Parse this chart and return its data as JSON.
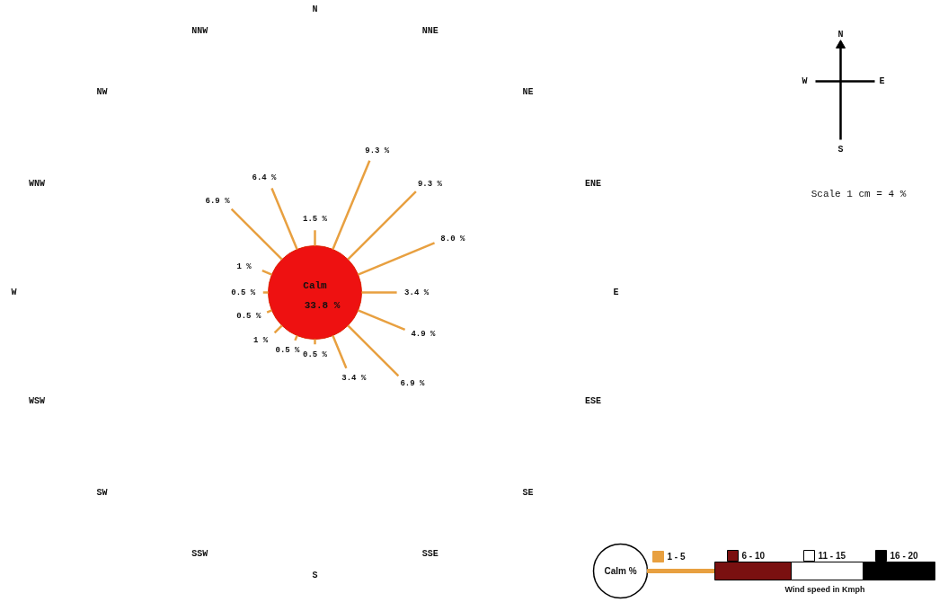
{
  "chart_data": {
    "type": "other",
    "categories": [
      "N",
      "NNE",
      "NE",
      "ENE",
      "E",
      "ESE",
      "SE",
      "SSE",
      "S",
      "SSW",
      "SW",
      "WSW",
      "W",
      "WNW",
      "NW",
      "NNW"
    ],
    "series": [
      {
        "name": "1 - 5",
        "color": "#e8a040",
        "values": [
          1.5,
          9.3,
          9.3,
          8.0,
          3.4,
          4.9,
          6.9,
          3.4,
          0.5,
          0.5,
          1,
          0.5,
          0.5,
          1,
          6.9,
          6.4
        ],
        "value_labels": [
          "1.5 %",
          "9.3 %",
          "9.3 %",
          "8.0 %",
          "3.4 %",
          "4.9 %",
          "6.9 %",
          "3.4 %",
          "0.5 %",
          "0.5 %",
          "1 %",
          "0.5 %",
          "0.5 %",
          "1 %",
          "6.9 %",
          "6.4 %"
        ]
      },
      {
        "name": "6 - 10",
        "color": "#7a1010",
        "values": [
          null,
          null,
          null,
          null,
          null,
          null,
          null,
          null,
          null,
          null,
          null,
          null,
          null,
          null,
          null,
          null
        ]
      },
      {
        "name": "11 - 15",
        "color": "#ffffff",
        "values": [
          null,
          null,
          null,
          null,
          null,
          null,
          null,
          null,
          null,
          null,
          null,
          null,
          null,
          null,
          null,
          null
        ]
      },
      {
        "name": "16 - 20",
        "color": "#000000",
        "values": [
          null,
          null,
          null,
          null,
          null,
          null,
          null,
          null,
          null,
          null,
          null,
          null,
          null,
          null,
          null,
          null
        ]
      }
    ],
    "legend_title": "Wind speed in Kmph",
    "legend": "bottom right",
    "annotations": [
      "Calm",
      "33.8 %",
      "Calm %",
      "Scale 1 cm = 4 %",
      "N",
      "W",
      "E",
      "S"
    ]
  }
}
